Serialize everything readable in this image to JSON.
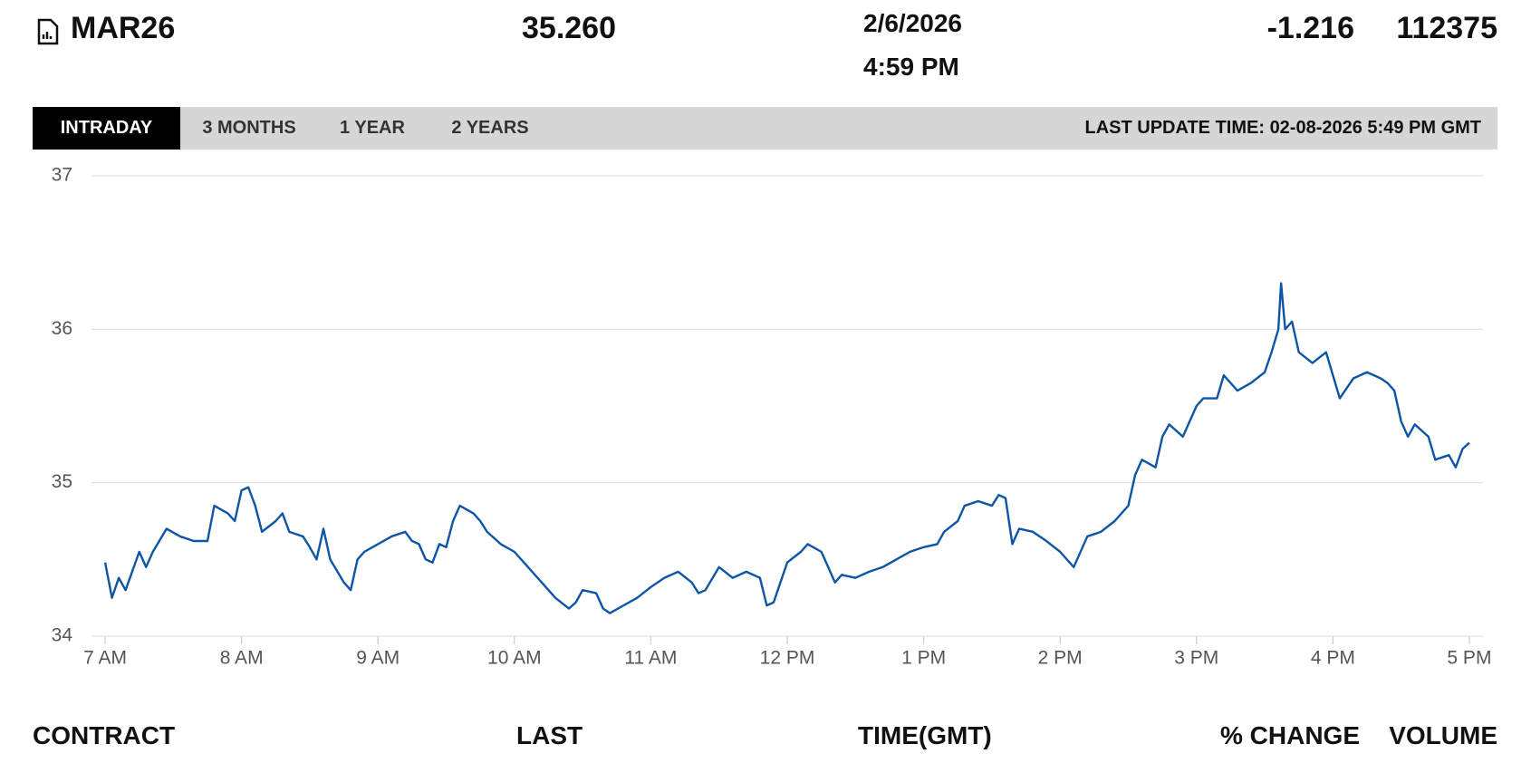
{
  "header": {
    "contract": "MAR26",
    "last": "35.260",
    "date": "2/6/2026",
    "time": "4:59 PM",
    "change": "-1.216",
    "volume": "112375"
  },
  "tabs": {
    "items": [
      "INTRADAY",
      "3 MONTHS",
      "1 YEAR",
      "2 YEARS"
    ],
    "active": 0
  },
  "last_update": "LAST UPDATE TIME: 02-08-2026 5:49 PM GMT",
  "chart_data": {
    "type": "line",
    "color": "#0d55a5",
    "grid": true,
    "x": [
      7,
      7.05,
      7.1,
      7.15,
      7.25,
      7.3,
      7.35,
      7.45,
      7.55,
      7.65,
      7.75,
      7.8,
      7.9,
      7.95,
      8,
      8.05,
      8.1,
      8.15,
      8.25,
      8.3,
      8.35,
      8.45,
      8.5,
      8.55,
      8.6,
      8.65,
      8.75,
      8.8,
      8.85,
      8.9,
      9,
      9.1,
      9.2,
      9.25,
      9.3,
      9.35,
      9.4,
      9.45,
      9.5,
      9.55,
      9.6,
      9.7,
      9.75,
      9.8,
      9.9,
      10,
      10.1,
      10.2,
      10.3,
      10.4,
      10.45,
      10.5,
      10.6,
      10.65,
      10.7,
      10.8,
      10.9,
      11,
      11.1,
      11.2,
      11.3,
      11.35,
      11.4,
      11.5,
      11.6,
      11.7,
      11.8,
      11.85,
      11.9,
      12,
      12.1,
      12.15,
      12.25,
      12.3,
      12.35,
      12.4,
      12.5,
      12.6,
      12.7,
      12.8,
      12.9,
      13,
      13.1,
      13.15,
      13.25,
      13.3,
      13.4,
      13.5,
      13.55,
      13.6,
      13.65,
      13.7,
      13.8,
      13.9,
      14,
      14.1,
      14.2,
      14.3,
      14.4,
      14.5,
      14.55,
      14.6,
      14.7,
      14.75,
      14.8,
      14.9,
      15,
      15.05,
      15.15,
      15.2,
      15.3,
      15.4,
      15.5,
      15.55,
      15.6,
      15.62,
      15.65,
      15.7,
      15.75,
      15.85,
      15.95,
      16,
      16.05,
      16.15,
      16.25,
      16.35,
      16.4,
      16.45,
      16.5,
      16.55,
      16.6,
      16.7,
      16.75,
      16.85,
      16.9,
      16.95,
      17
    ],
    "values": [
      34.48,
      34.25,
      34.38,
      34.3,
      34.55,
      34.45,
      34.55,
      34.7,
      34.65,
      34.62,
      34.62,
      34.85,
      34.8,
      34.75,
      34.95,
      34.97,
      34.85,
      34.68,
      34.75,
      34.8,
      34.68,
      34.65,
      34.58,
      34.5,
      34.7,
      34.5,
      34.35,
      34.3,
      34.5,
      34.55,
      34.6,
      34.65,
      34.68,
      34.62,
      34.6,
      34.5,
      34.48,
      34.6,
      34.58,
      34.75,
      34.85,
      34.8,
      34.75,
      34.68,
      34.6,
      34.55,
      34.45,
      34.35,
      34.25,
      34.18,
      34.22,
      34.3,
      34.28,
      34.18,
      34.15,
      34.2,
      34.25,
      34.32,
      34.38,
      34.42,
      34.35,
      34.28,
      34.3,
      34.45,
      34.38,
      34.42,
      34.38,
      34.2,
      34.22,
      34.48,
      34.55,
      34.6,
      34.55,
      34.45,
      34.35,
      34.4,
      34.38,
      34.42,
      34.45,
      34.5,
      34.55,
      34.58,
      34.6,
      34.68,
      34.75,
      34.85,
      34.88,
      34.85,
      34.92,
      34.9,
      34.6,
      34.7,
      34.68,
      34.62,
      34.55,
      34.45,
      34.65,
      34.68,
      34.75,
      34.85,
      35.05,
      35.15,
      35.1,
      35.3,
      35.38,
      35.3,
      35.5,
      35.55,
      35.55,
      35.7,
      35.6,
      35.65,
      35.72,
      35.85,
      36.0,
      36.3,
      36.0,
      36.05,
      35.85,
      35.78,
      35.85,
      35.7,
      35.55,
      35.68,
      35.72,
      35.68,
      35.65,
      35.6,
      35.4,
      35.3,
      35.38,
      35.3,
      35.15,
      35.18,
      35.1,
      35.22,
      35.26
    ],
    "xlim": [
      6.9,
      17.1
    ],
    "xticks": [
      {
        "value": 7,
        "label": "7 AM"
      },
      {
        "value": 8,
        "label": "8 AM"
      },
      {
        "value": 9,
        "label": "9 AM"
      },
      {
        "value": 10,
        "label": "10 AM"
      },
      {
        "value": 11,
        "label": "11 AM"
      },
      {
        "value": 12,
        "label": "12 PM"
      },
      {
        "value": 13,
        "label": "1 PM"
      },
      {
        "value": 14,
        "label": "2 PM"
      },
      {
        "value": 15,
        "label": "3 PM"
      },
      {
        "value": 16,
        "label": "4 PM"
      },
      {
        "value": 17,
        "label": "5 PM"
      }
    ],
    "ylim": [
      34,
      37
    ],
    "yticks": [
      34,
      35,
      36,
      37
    ]
  },
  "columns": [
    "CONTRACT",
    "LAST",
    "TIME(GMT)",
    "% CHANGE",
    "VOLUME"
  ]
}
